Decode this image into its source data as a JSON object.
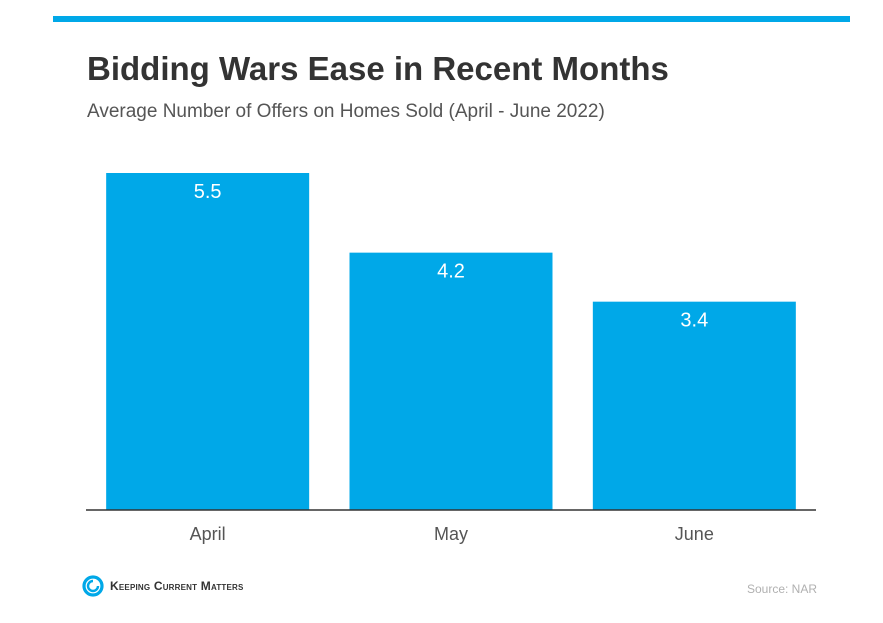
{
  "colors": {
    "accent": "#00A8E8",
    "axis": "#333333",
    "bar_label": "#ffffff",
    "category": "#555555"
  },
  "chart_data": {
    "type": "bar",
    "title": "Bidding Wars Ease in Recent Months",
    "subtitle": "Average Number of Offers on Homes Sold (April - June 2022)",
    "categories": [
      "April",
      "May",
      "June"
    ],
    "values": [
      5.5,
      4.2,
      3.4
    ],
    "data_labels": [
      "5.5",
      "4.2",
      "3.4"
    ],
    "xlabel": "",
    "ylabel": "",
    "ylim": [
      0,
      5.5
    ],
    "grid": false
  },
  "footer": {
    "logo_text": "Keeping Current Matters",
    "logo_icon": "kcm-swirl-icon",
    "source": "Source: NAR"
  }
}
